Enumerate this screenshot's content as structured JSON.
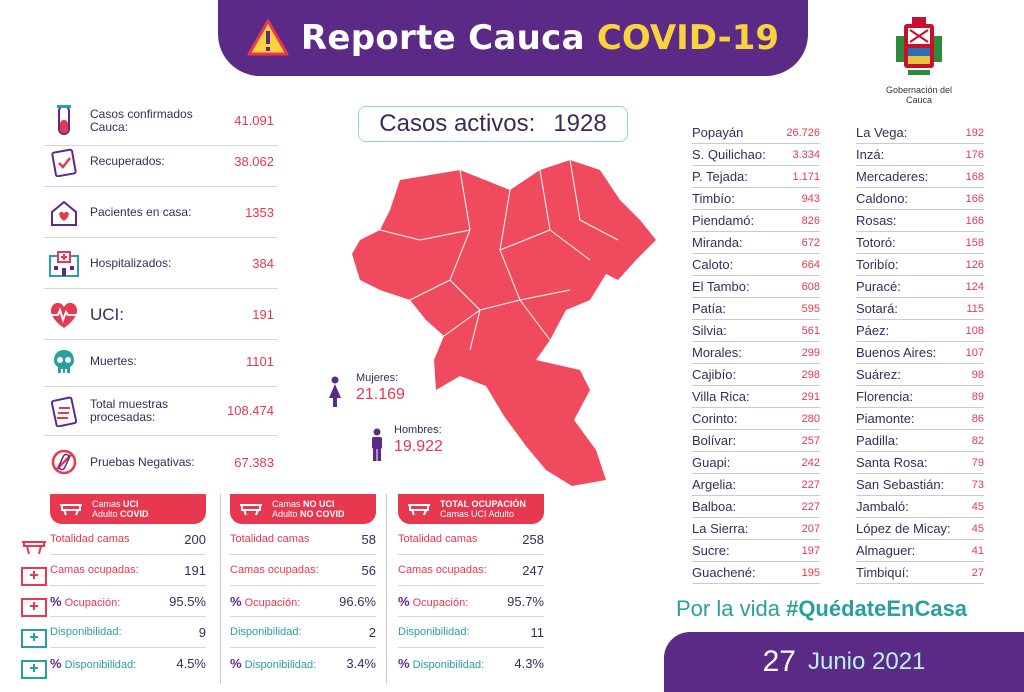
{
  "header": {
    "title": "Reporte Cauca",
    "highlight": "COVID-19"
  },
  "logo": {
    "caption": "Gobernación del Cauca"
  },
  "stats": [
    {
      "label": "Casos confirmados Cauca:",
      "value": "41.091",
      "icon": "test-tube-icon"
    },
    {
      "label": "Recuperados:",
      "value": "38.062",
      "icon": "clipboard-check-icon"
    },
    {
      "label": "Pacientes en casa:",
      "value": "1353",
      "icon": "house-heart-icon"
    },
    {
      "label": "Hospitalizados:",
      "value": "384",
      "icon": "hospital-icon"
    },
    {
      "label": "UCI:",
      "value": "191",
      "icon": "heart-pulse-icon"
    },
    {
      "label": "Muertes:",
      "value": "1101",
      "icon": "skull-icon"
    },
    {
      "label": "Total muestras procesadas:",
      "value": "108.474",
      "icon": "clipboard-list-icon"
    },
    {
      "label": "Pruebas Negativas:",
      "value": "67.383",
      "icon": "negative-test-icon"
    }
  ],
  "activos": {
    "label": "Casos activos:",
    "value": "1928"
  },
  "gender": {
    "mujeres": {
      "label": "Mujeres:",
      "value": "21.169"
    },
    "hombres": {
      "label": "Hombres:",
      "value": "19.922"
    }
  },
  "municipios_left": [
    {
      "name": "Popayán",
      "value": "26.726"
    },
    {
      "name": "S. Quilichao:",
      "value": "3.334"
    },
    {
      "name": "P. Tejada:",
      "value": "1.171"
    },
    {
      "name": "Timbío:",
      "value": "943"
    },
    {
      "name": "Piendamó:",
      "value": "826"
    },
    {
      "name": "Miranda:",
      "value": "672"
    },
    {
      "name": "Caloto:",
      "value": "664"
    },
    {
      "name": "El Tambo:",
      "value": "608"
    },
    {
      "name": "Patía:",
      "value": "595"
    },
    {
      "name": "Silvia:",
      "value": "561"
    },
    {
      "name": "Morales:",
      "value": "299"
    },
    {
      "name": "Cajibío:",
      "value": "298"
    },
    {
      "name": "Villa Rica:",
      "value": "291"
    },
    {
      "name": "Corinto:",
      "value": "280"
    },
    {
      "name": "Bolívar:",
      "value": "257"
    },
    {
      "name": "Guapi:",
      "value": "242"
    },
    {
      "name": "Argelia:",
      "value": "227"
    },
    {
      "name": "Balboa:",
      "value": "227"
    },
    {
      "name": "La Sierra:",
      "value": "207"
    },
    {
      "name": "Sucre:",
      "value": "197"
    },
    {
      "name": "Guachené:",
      "value": "195"
    }
  ],
  "municipios_right": [
    {
      "name": "La Vega:",
      "value": "192"
    },
    {
      "name": "Inzá:",
      "value": "176"
    },
    {
      "name": "Mercaderes:",
      "value": "168"
    },
    {
      "name": "Caldono:",
      "value": "166"
    },
    {
      "name": "Rosas:",
      "value": "166"
    },
    {
      "name": "Totoró:",
      "value": "158"
    },
    {
      "name": "Toribío:",
      "value": "126"
    },
    {
      "name": "Puracé:",
      "value": "124"
    },
    {
      "name": "Sotará:",
      "value": "115"
    },
    {
      "name": "Páez:",
      "value": "108"
    },
    {
      "name": "Buenos Aires:",
      "value": "107"
    },
    {
      "name": "Suárez:",
      "value": "98"
    },
    {
      "name": "Florencia:",
      "value": "89"
    },
    {
      "name": "Piamonte:",
      "value": "86"
    },
    {
      "name": "Padilla:",
      "value": "82"
    },
    {
      "name": "Santa Rosa:",
      "value": "79"
    },
    {
      "name": "San Sebastián:",
      "value": "73"
    },
    {
      "name": "Jambaló:",
      "value": "45"
    },
    {
      "name": "López de Micay:",
      "value": "45"
    },
    {
      "name": "Almaguer:",
      "value": "41"
    },
    {
      "name": "Timbiquí:",
      "value": "27"
    }
  ],
  "beds": {
    "labels": {
      "total": "Totalidad camas",
      "ocupadas": "Camas ocupadas:",
      "pct_sym": "%",
      "ocupacion": "Ocupación:",
      "disponibilidad": "Disponibilidad:"
    },
    "col1": {
      "h1": "Camas",
      "h1b": "UCI",
      "h2": "Adulto",
      "h2b": "COVID",
      "total": "200",
      "ocupadas": "191",
      "ocupacion": "95.5%",
      "disp": "9",
      "pdisp": "4.5%"
    },
    "col2": {
      "h1": "Camas",
      "h1b": "NO UCI",
      "h2": "Adulto",
      "h2b": "NO COVID",
      "total": "58",
      "ocupadas": "56",
      "ocupacion": "96.6%",
      "disp": "2",
      "pdisp": "3.4%"
    },
    "col3": {
      "h1b": "TOTAL OCUPACIÓN",
      "h2": "Camas UCI Adulto",
      "total": "258",
      "ocupadas": "247",
      "ocupacion": "95.7%",
      "disp": "11",
      "pdisp": "4.3%"
    }
  },
  "slogan": {
    "pre": "Por la vida",
    "tag": "#QuédateEnCasa"
  },
  "date": {
    "day": "27",
    "rest": "Junio 2021"
  },
  "colors": {
    "purple": "#5b2a86",
    "red": "#e8384f",
    "yellow": "#f9d23c",
    "teal": "#2a9fa0"
  }
}
